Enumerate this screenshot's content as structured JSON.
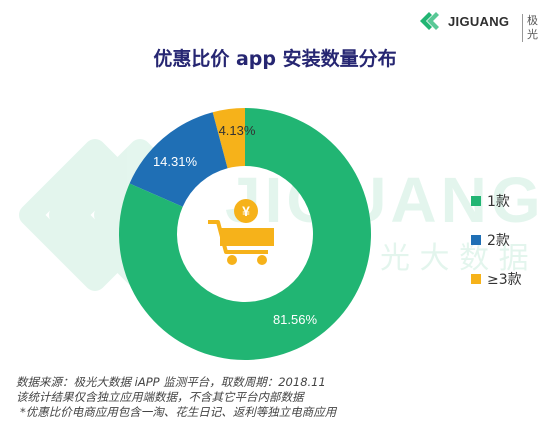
{
  "brand": {
    "name": "JIGUANG",
    "name_cn": "极光"
  },
  "title": "优惠比价 app 安装数量分布",
  "watermark": {
    "text": "JIGUANG",
    "text_cn": "光 大 数 据"
  },
  "chart_data": {
    "type": "pie",
    "donut": true,
    "title": "优惠比价 app 安装数量分布",
    "categories": [
      "1款",
      "2款",
      "≥3款"
    ],
    "values": [
      81.56,
      14.31,
      4.13
    ],
    "value_labels": [
      "81.56%",
      "14.31%",
      "4.13%"
    ],
    "colors": [
      "#21b573",
      "#1f6fb5",
      "#f6b21a"
    ],
    "legend_position": "right",
    "center_icon": "shopping-cart-yen-icon"
  },
  "legend": [
    {
      "label": "1款",
      "color": "#21b573"
    },
    {
      "label": "2款",
      "color": "#1f6fb5"
    },
    {
      "label": "≥3款",
      "color": "#f6b21a"
    }
  ],
  "footer": {
    "line1": "数据来源：极光大数据 iAPP 监测平台，取数周期：2018.11",
    "line2": "该统计结果仅含独立应用端数据，不含其它平台内部数据",
    "line3": "*优惠比价电商应用包含一淘、花生日记、返利等独立电商应用"
  }
}
